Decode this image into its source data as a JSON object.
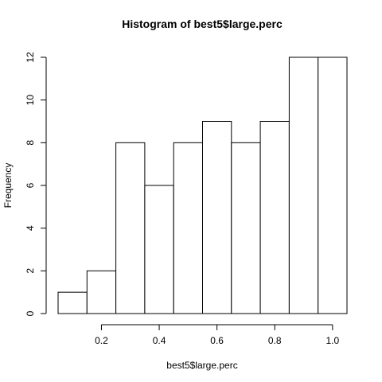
{
  "chart_data": {
    "type": "bar",
    "title": "Histogram of best5$large.perc",
    "xlabel": "best5$large.perc",
    "ylabel": "Frequency",
    "bins": [
      {
        "from": 0.05,
        "to": 0.15,
        "count": 1
      },
      {
        "from": 0.15,
        "to": 0.25,
        "count": 2
      },
      {
        "from": 0.25,
        "to": 0.35,
        "count": 8
      },
      {
        "from": 0.35,
        "to": 0.45,
        "count": 6
      },
      {
        "from": 0.45,
        "to": 0.55,
        "count": 8
      },
      {
        "from": 0.55,
        "to": 0.65,
        "count": 9
      },
      {
        "from": 0.65,
        "to": 0.75,
        "count": 8
      },
      {
        "from": 0.75,
        "to": 0.85,
        "count": 9
      },
      {
        "from": 0.85,
        "to": 0.95,
        "count": 12
      },
      {
        "from": 0.95,
        "to": 1.05,
        "count": 12
      }
    ],
    "xlim": [
      0.05,
      1.05
    ],
    "ylim": [
      0,
      12
    ],
    "xticks": [
      "0.2",
      "0.4",
      "0.6",
      "0.8",
      "1.0"
    ],
    "yticks": [
      "0",
      "2",
      "4",
      "6",
      "8",
      "10",
      "12"
    ],
    "grid": false,
    "bar_fill": "#ffffff",
    "bar_stroke": "#000000"
  }
}
